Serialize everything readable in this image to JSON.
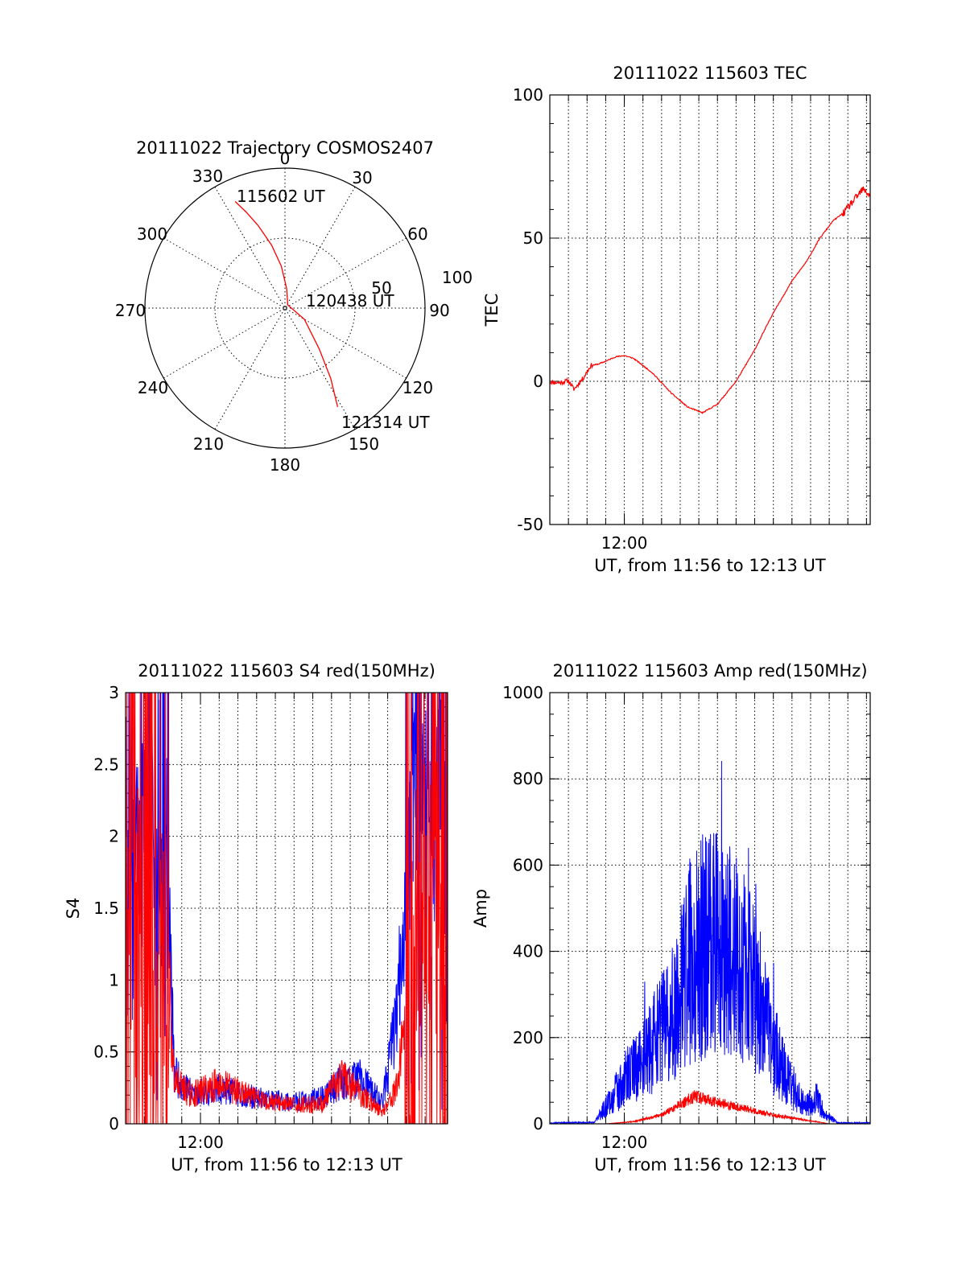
{
  "colors": {
    "red": "#ff0000",
    "blue": "#0000ff",
    "axis": "#000000",
    "background": "#ffffff"
  },
  "chart_data": [
    {
      "type": "polar",
      "title": "20111022 Trajectory COSMOS2407",
      "azimuth_labels": [
        "0",
        "30",
        "60",
        "90",
        "120",
        "150",
        "180",
        "210",
        "240",
        "270",
        "300",
        "330"
      ],
      "ring_labels": [
        "50",
        "100"
      ],
      "rlim": [
        0,
        100
      ],
      "annotations": [
        "115602 UT",
        "120438 UT",
        "121314 UT"
      ],
      "series": [
        {
          "color": "red",
          "points_az_r": [
            [
              -25,
              84
            ],
            [
              -22,
              74
            ],
            [
              -18,
              62
            ],
            [
              -12,
              46
            ],
            [
              -5,
              30
            ],
            [
              5,
              14
            ],
            [
              40,
              3
            ],
            [
              120,
              16
            ],
            [
              140,
              38
            ],
            [
              147,
              60
            ],
            [
              152,
              80
            ]
          ]
        }
      ]
    },
    {
      "type": "line",
      "title": "20111022 115603 TEC",
      "xlabel": "UT, from 11:56 to 12:13 UT",
      "ylabel": "TEC",
      "xlim_minutes": [
        0,
        17.2
      ],
      "ylim": [
        -50,
        100
      ],
      "x_tick_labels": [
        "12:00"
      ],
      "y_tick_labels": [
        "-50",
        "0",
        "50",
        "100"
      ],
      "grid": true,
      "series": [
        {
          "color": "red",
          "x": [
            0,
            0.5,
            1.0,
            1.3,
            1.8,
            2.2,
            2.6,
            3.0,
            3.5,
            4.0,
            4.5,
            5.5,
            6.5,
            7.4,
            8.2,
            9.0,
            10.0,
            11.0,
            12.0,
            13.0,
            13.8,
            14.5,
            15.2,
            15.8,
            16.3,
            16.8,
            17.2
          ],
          "y": [
            -0.2,
            -0.5,
            0.2,
            -2.8,
            1.2,
            5.5,
            6.0,
            7.0,
            8.5,
            9.0,
            8.0,
            3.0,
            -4.0,
            -9.0,
            -11.0,
            -8.0,
            0.0,
            11.0,
            24.0,
            35.0,
            42.0,
            50.0,
            56.0,
            59.0,
            63.0,
            67.0,
            65.0
          ]
        }
      ]
    },
    {
      "type": "line",
      "title": "20111022 115603 S4 red(150MHz)",
      "xlabel": "UT, from 11:56 to 12:13 UT",
      "ylabel": "S4",
      "xlim_minutes": [
        0,
        17.2
      ],
      "ylim": [
        0,
        3
      ],
      "x_tick_labels": [
        "12:00"
      ],
      "y_tick_labels": [
        "0",
        "0.5",
        "1",
        "1.5",
        "2",
        "2.5",
        "3"
      ],
      "grid": true,
      "series": [
        {
          "color": "blue",
          "x": [
            0,
            2.3,
            2.6,
            3.5,
            5.0,
            7.0,
            9.0,
            10.5,
            11.5,
            12.5,
            13.7,
            14.0,
            14.6,
            15.0,
            16.0,
            17.2
          ],
          "y": [
            2.5,
            1.5,
            0.35,
            0.22,
            0.24,
            0.18,
            0.15,
            0.18,
            0.3,
            0.32,
            0.15,
            0.35,
            0.9,
            2.0,
            2.2,
            1.9
          ]
        },
        {
          "color": "red",
          "x": [
            0,
            2.3,
            2.6,
            3.5,
            5.0,
            7.0,
            9.0,
            10.5,
            11.5,
            12.5,
            13.7,
            14.5,
            15.5,
            17.2
          ],
          "y": [
            1.5,
            1.0,
            0.3,
            0.2,
            0.28,
            0.17,
            0.13,
            0.14,
            0.32,
            0.22,
            0.08,
            0.25,
            1.5,
            1.5
          ]
        }
      ]
    },
    {
      "type": "line",
      "title": "20111022 115603 Amp red(150MHz)",
      "xlabel": "UT, from 11:56 to 12:13 UT",
      "ylabel": "Amp",
      "xlim_minutes": [
        0,
        17.2
      ],
      "ylim": [
        0,
        1000
      ],
      "x_tick_labels": [
        "12:00"
      ],
      "y_tick_labels": [
        "0",
        "200",
        "400",
        "600",
        "800",
        "1000"
      ],
      "grid": true,
      "series": [
        {
          "color": "blue",
          "x": [
            0,
            2.4,
            3.0,
            4.0,
            5.5,
            6.8,
            7.7,
            8.5,
            9.3,
            10.2,
            11.0,
            12.0,
            13.0,
            13.7,
            14.3,
            14.8,
            15.5,
            17.2
          ],
          "y": [
            2,
            3,
            40,
            100,
            180,
            270,
            400,
            420,
            410,
            380,
            300,
            180,
            90,
            40,
            60,
            20,
            2,
            2
          ]
        },
        {
          "color": "red",
          "x": [
            0,
            3.0,
            4.5,
            6.0,
            7.0,
            7.8,
            8.5,
            9.5,
            10.5,
            12.0,
            13.5,
            14.3,
            15.0,
            17.2
          ],
          "y": [
            0,
            0,
            5,
            20,
            45,
            65,
            55,
            45,
            35,
            20,
            10,
            5,
            0,
            0
          ]
        }
      ]
    }
  ]
}
